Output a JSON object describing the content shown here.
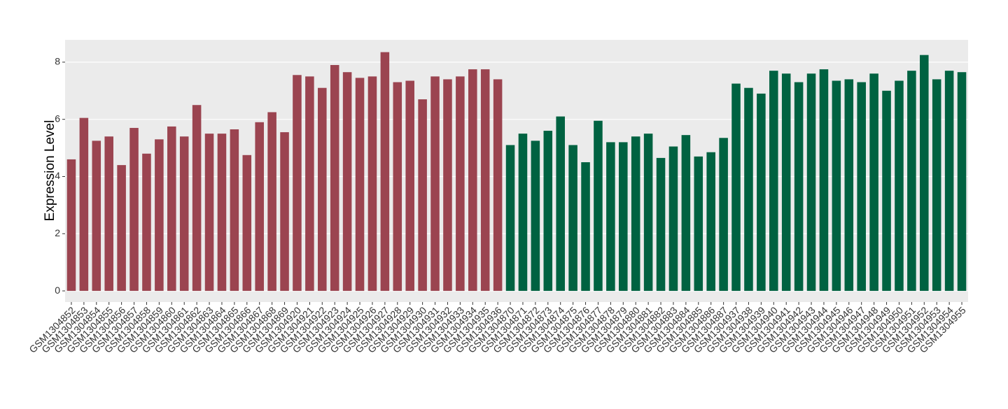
{
  "chart_data": {
    "type": "bar",
    "ylabel": "Expression Level",
    "categories": [
      "GSM1304852",
      "GSM1304853",
      "GSM1304854",
      "GSM1304855",
      "GSM1304856",
      "GSM1304857",
      "GSM1304858",
      "GSM1304859",
      "GSM1304860",
      "GSM1304861",
      "GSM1304862",
      "GSM1304863",
      "GSM1304864",
      "GSM1304865",
      "GSM1304866",
      "GSM1304867",
      "GSM1304868",
      "GSM1304869",
      "GSM1304920",
      "GSM1304921",
      "GSM1304922",
      "GSM1304923",
      "GSM1304924",
      "GSM1304925",
      "GSM1304926",
      "GSM1304927",
      "GSM1304928",
      "GSM1304929",
      "GSM1304930",
      "GSM1304931",
      "GSM1304932",
      "GSM1304933",
      "GSM1304934",
      "GSM1304935",
      "GSM1304936",
      "GSM1304870",
      "GSM1304871",
      "GSM1304872",
      "GSM1304873",
      "GSM1304874",
      "GSM1304875",
      "GSM1304876",
      "GSM1304877",
      "GSM1304878",
      "GSM1304879",
      "GSM1304880",
      "GSM1304881",
      "GSM1304882",
      "GSM1304883",
      "GSM1304884",
      "GSM1304885",
      "GSM1304886",
      "GSM1304887",
      "GSM1304937",
      "GSM1304938",
      "GSM1304939",
      "GSM1304940",
      "GSM1304941",
      "GSM1304942",
      "GSM1304943",
      "GSM1304944",
      "GSM1304945",
      "GSM1304946",
      "GSM1304947",
      "GSM1304948",
      "GSM1304949",
      "GSM1304950",
      "GSM1304951",
      "GSM1304952",
      "GSM1304953",
      "GSM1304954",
      "GSM1304955"
    ],
    "values": [
      4.6,
      6.05,
      5.25,
      5.4,
      4.4,
      5.7,
      4.8,
      5.3,
      5.75,
      5.4,
      6.5,
      5.5,
      5.5,
      5.65,
      4.75,
      5.9,
      6.25,
      5.55,
      7.55,
      7.5,
      7.1,
      7.9,
      7.65,
      7.45,
      7.5,
      8.35,
      7.3,
      7.35,
      6.7,
      7.5,
      7.4,
      7.5,
      7.75,
      7.75,
      7.4,
      5.1,
      5.5,
      5.25,
      5.6,
      6.1,
      5.1,
      4.5,
      5.95,
      5.2,
      5.2,
      5.4,
      5.5,
      4.65,
      5.05,
      5.45,
      4.7,
      4.85,
      5.35,
      7.25,
      7.1,
      6.9,
      7.7,
      7.6,
      7.3,
      7.6,
      7.75,
      7.35,
      7.4,
      7.3,
      7.6,
      7.0,
      7.35,
      7.7,
      8.25,
      7.4,
      7.7,
      7.65
    ],
    "colors": [
      "#9b4450",
      "#9b4450",
      "#9b4450",
      "#9b4450",
      "#9b4450",
      "#9b4450",
      "#9b4450",
      "#9b4450",
      "#9b4450",
      "#9b4450",
      "#9b4450",
      "#9b4450",
      "#9b4450",
      "#9b4450",
      "#9b4450",
      "#9b4450",
      "#9b4450",
      "#9b4450",
      "#9b4450",
      "#9b4450",
      "#9b4450",
      "#9b4450",
      "#9b4450",
      "#9b4450",
      "#9b4450",
      "#9b4450",
      "#9b4450",
      "#9b4450",
      "#9b4450",
      "#9b4450",
      "#9b4450",
      "#9b4450",
      "#9b4450",
      "#9b4450",
      "#9b4450",
      "#006241",
      "#006241",
      "#006241",
      "#006241",
      "#006241",
      "#006241",
      "#006241",
      "#006241",
      "#006241",
      "#006241",
      "#006241",
      "#006241",
      "#006241",
      "#006241",
      "#006241",
      "#006241",
      "#006241",
      "#006241",
      "#006241",
      "#006241",
      "#006241",
      "#006241",
      "#006241",
      "#006241",
      "#006241",
      "#006241",
      "#006241",
      "#006241",
      "#006241",
      "#006241",
      "#006241",
      "#006241",
      "#006241",
      "#006241",
      "#006241",
      "#006241",
      "#006241"
    ],
    "ylim": [
      -0.39,
      8.78
    ],
    "yticks": [
      0,
      2,
      4,
      6,
      8
    ],
    "grid": true
  }
}
